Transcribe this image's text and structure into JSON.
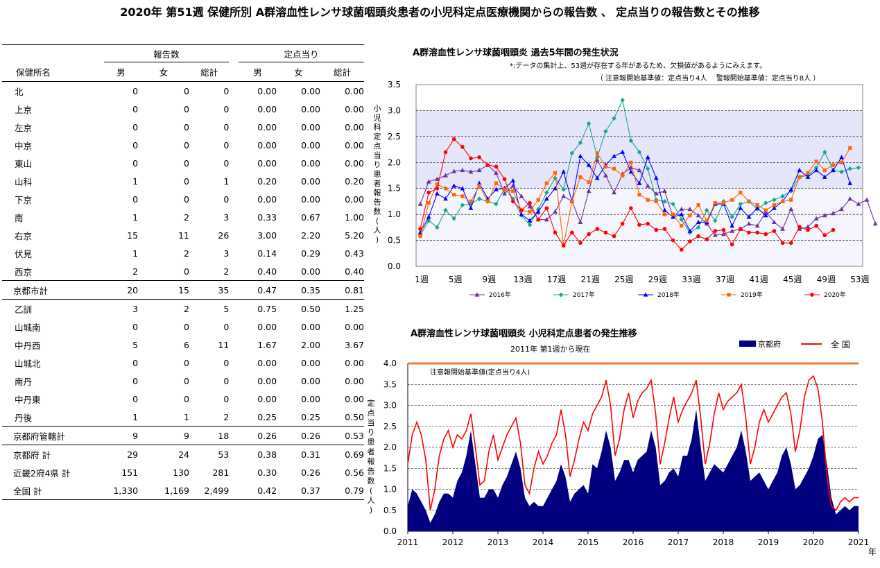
{
  "page_title": "2020年 第51週 保健所別 A群溶血性レンサ球菌咽頭炎患者の小児科定点医療機関からの報告数 、 定点当りの報告数とその推移",
  "table": {
    "group_reports": "報告数",
    "group_per_sentinel": "定点当り",
    "col_name": "保健所名",
    "col_male": "男",
    "col_female": "女",
    "col_total": "総計",
    "col_male2": "男",
    "col_female2": "女",
    "col_total2": "総計",
    "rows": [
      {
        "name": "北",
        "m": "0",
        "f": "0",
        "t": "0",
        "pm": "0.00",
        "pf": "0.00",
        "pt": "0.00",
        "kind": "item"
      },
      {
        "name": "上京",
        "m": "0",
        "f": "0",
        "t": "0",
        "pm": "0.00",
        "pf": "0.00",
        "pt": "0.00",
        "kind": "item"
      },
      {
        "name": "左京",
        "m": "0",
        "f": "0",
        "t": "0",
        "pm": "0.00",
        "pf": "0.00",
        "pt": "0.00",
        "kind": "item"
      },
      {
        "name": "中京",
        "m": "0",
        "f": "0",
        "t": "0",
        "pm": "0.00",
        "pf": "0.00",
        "pt": "0.00",
        "kind": "item"
      },
      {
        "name": "東山",
        "m": "0",
        "f": "0",
        "t": "0",
        "pm": "0.00",
        "pf": "0.00",
        "pt": "0.00",
        "kind": "item"
      },
      {
        "name": "山科",
        "m": "1",
        "f": "0",
        "t": "1",
        "pm": "0.20",
        "pf": "0.00",
        "pt": "0.20",
        "kind": "item"
      },
      {
        "name": "下京",
        "m": "0",
        "f": "0",
        "t": "0",
        "pm": "0.00",
        "pf": "0.00",
        "pt": "0.00",
        "kind": "item"
      },
      {
        "name": "南",
        "m": "1",
        "f": "2",
        "t": "3",
        "pm": "0.33",
        "pf": "0.67",
        "pt": "1.00",
        "kind": "item"
      },
      {
        "name": "右京",
        "m": "15",
        "f": "11",
        "t": "26",
        "pm": "3.00",
        "pf": "2.20",
        "pt": "5.20",
        "kind": "item"
      },
      {
        "name": "伏見",
        "m": "1",
        "f": "2",
        "t": "3",
        "pm": "0.14",
        "pf": "0.29",
        "pt": "0.43",
        "kind": "item"
      },
      {
        "name": "西京",
        "m": "2",
        "f": "0",
        "t": "2",
        "pm": "0.40",
        "pf": "0.00",
        "pt": "0.40",
        "kind": "item"
      },
      {
        "name": "京都市計",
        "m": "20",
        "f": "15",
        "t": "35",
        "pm": "0.47",
        "pf": "0.35",
        "pt": "0.81",
        "kind": "subtotal"
      },
      {
        "name": "乙訓",
        "m": "3",
        "f": "2",
        "t": "5",
        "pm": "0.75",
        "pf": "0.50",
        "pt": "1.25",
        "kind": "item"
      },
      {
        "name": "山城南",
        "m": "0",
        "f": "0",
        "t": "0",
        "pm": "0.00",
        "pf": "0.00",
        "pt": "0.00",
        "kind": "item"
      },
      {
        "name": "中丹西",
        "m": "5",
        "f": "6",
        "t": "11",
        "pm": "1.67",
        "pf": "2.00",
        "pt": "3.67",
        "kind": "item"
      },
      {
        "name": "山城北",
        "m": "0",
        "f": "0",
        "t": "0",
        "pm": "0.00",
        "pf": "0.00",
        "pt": "0.00",
        "kind": "item"
      },
      {
        "name": "南丹",
        "m": "0",
        "f": "0",
        "t": "0",
        "pm": "0.00",
        "pf": "0.00",
        "pt": "0.00",
        "kind": "item"
      },
      {
        "name": "中丹東",
        "m": "0",
        "f": "0",
        "t": "0",
        "pm": "0.00",
        "pf": "0.00",
        "pt": "0.00",
        "kind": "item"
      },
      {
        "name": "丹後",
        "m": "1",
        "f": "1",
        "t": "2",
        "pm": "0.25",
        "pf": "0.25",
        "pt": "0.50",
        "kind": "item"
      },
      {
        "name": "京都府管轄計",
        "m": "9",
        "f": "9",
        "t": "18",
        "pm": "0.26",
        "pf": "0.26",
        "pt": "0.53",
        "kind": "subtotal"
      },
      {
        "name": "京都府 計",
        "m": "29",
        "f": "24",
        "t": "53",
        "pm": "0.38",
        "pf": "0.31",
        "pt": "0.69",
        "kind": "total"
      },
      {
        "name": "近畿2府4県 計",
        "m": "151",
        "f": "130",
        "t": "281",
        "pm": "0.30",
        "pf": "0.26",
        "pt": "0.56",
        "kind": "total"
      },
      {
        "name": "全国 計",
        "m": "1,330",
        "f": "1,169",
        "t": "2,499",
        "pm": "0.42",
        "pf": "0.37",
        "pt": "0.79",
        "kind": "total"
      }
    ]
  },
  "chart1": {
    "title": "A群溶血性レンサ球菌咽頭炎 過去5年間の発生状況",
    "note1": "*:データの集計上、53週が存在する年があるため、欠損値があるようにみえます。",
    "note2": "（ 注意報開始基準値：定点当り4人　 警報開始基準値：定点当り8人 ）",
    "ylabel": "小児科定点当り患者報告数(人)",
    "legend": [
      "2016年",
      "2017年",
      "2018年",
      "2019年",
      "2020年"
    ]
  },
  "chart2": {
    "title": "A群溶血性レンサ球菌咽頭炎 小児科定点患者の発生推移",
    "subtitle": "2011年 第1週から現在",
    "legend_kyoto": "京都府",
    "legend_national": "全 国",
    "threshold_label": "注意報開始基準値(定点当り4人)",
    "ylabel": "定点当り患者報告数(人)",
    "xunit": "年"
  },
  "chart_data": [
    {
      "type": "line",
      "title": "A群溶血性レンサ球菌咽頭炎 過去5年間の発生状況",
      "ylabel": "小児科定点当り患者報告数(人)",
      "ylim": [
        0,
        3.5
      ],
      "y_ticks": [
        "0.0",
        "0.5",
        "1.0",
        "1.5",
        "2.0",
        "2.5",
        "3.0",
        "3.5"
      ],
      "x_ticks": [
        "1週",
        "5週",
        "9週",
        "13週",
        "17週",
        "21週",
        "25週",
        "29週",
        "33週",
        "37週",
        "41週",
        "45週",
        "49週",
        "53週"
      ],
      "legend_position": "bottom",
      "alert_levels": {
        "caution": 4,
        "warning": 8
      },
      "series": [
        {
          "name": "2016年",
          "color": "#7030a0",
          "marker": "triangle",
          "values": [
            1.2,
            1.63,
            1.68,
            1.75,
            1.83,
            1.85,
            1.82,
            1.85,
            1.95,
            1.8,
            1.4,
            1.55,
            1.35,
            1.15,
            0.9,
            0.9,
            1.05,
            1.35,
            1.25,
            0.85,
            1.45,
            2.05,
            1.75,
            1.42,
            1.78,
            1.9,
            1.85,
            1.55,
            1.4,
            1.45,
            0.95,
            1.1,
            1.1,
            0.98,
            0.82,
            0.6,
            0.62,
            0.68,
            0.72,
            0.82,
            0.78,
            1.05,
            0.85,
            0.72,
            1.1,
            0.72,
            0.76,
            0.92,
            0.98,
            1.02,
            1.1,
            1.3,
            1.2,
            1.28,
            0.82
          ]
        },
        {
          "name": "2017年",
          "color": "#17a589",
          "marker": "diamond",
          "values": [
            0.6,
            0.88,
            0.75,
            1.08,
            0.92,
            1.18,
            1.2,
            1.3,
            1.25,
            1.2,
            1.5,
            1.3,
            0.98,
            0.8,
            1.1,
            1.42,
            1.7,
            1.48,
            2.18,
            2.38,
            2.75,
            2.1,
            2.6,
            2.85,
            3.2,
            2.42,
            2.2,
            1.88,
            1.28,
            1.25,
            1.2,
            0.9,
            0.65,
            0.75,
            1.08,
            0.88,
            1.25,
            0.95,
            1.2,
            1.25,
            1.1,
            1.22,
            1.28,
            1.35,
            1.45,
            1.72,
            1.75,
            1.9,
            2.2,
            1.85,
            1.82,
            1.88,
            1.9
          ]
        },
        {
          "name": "2018年",
          "color": "#0000ff",
          "marker": "triangle",
          "values": [
            0.65,
            0.95,
            1.4,
            1.3,
            1.55,
            1.5,
            1.12,
            1.6,
            1.3,
            1.48,
            1.5,
            1.65,
            1.0,
            0.88,
            1.05,
            1.3,
            1.5,
            1.82,
            1.25,
            2.12,
            1.95,
            1.7,
            1.95,
            2.12,
            2.2,
            1.82,
            1.6,
            2.1,
            1.7,
            1.08,
            0.95,
            1.0,
            0.68,
            0.85,
            0.85,
            1.2,
            1.2,
            0.78,
            1.12,
            0.95,
            1.12,
            0.98,
            1.12,
            1.25,
            1.48,
            1.85,
            1.72,
            1.85,
            1.72,
            1.85,
            2.1,
            1.6
          ]
        },
        {
          "name": "2019年",
          "color": "#ff6600",
          "marker": "square",
          "values": [
            0.58,
            1.22,
            1.58,
            1.5,
            1.38,
            1.35,
            1.25,
            1.55,
            1.25,
            1.6,
            1.48,
            1.45,
            1.08,
            1.05,
            1.28,
            1.6,
            1.8,
            0.4,
            1.25,
            1.72,
            1.62,
            2.18,
            1.92,
            1.88,
            1.75,
            2.0,
            1.38,
            1.28,
            1.25,
            1.0,
            1.0,
            0.78,
            0.98,
            1.18,
            0.88,
            1.22,
            1.22,
            1.28,
            1.42,
            1.25,
            1.18,
            1.08,
            1.18,
            1.25,
            1.28,
            1.72,
            1.8,
            2.02,
            1.85,
            1.95,
            2.0,
            2.28
          ]
        },
        {
          "name": "2020年",
          "color": "#ff0000",
          "marker": "circle",
          "values": [
            0.72,
            1.42,
            1.5,
            2.2,
            2.45,
            2.3,
            2.08,
            2.1,
            1.95,
            1.92,
            1.68,
            1.25,
            1.08,
            1.22,
            0.9,
            1.12,
            0.65,
            0.4,
            0.65,
            0.45,
            0.62,
            0.72,
            0.65,
            0.58,
            0.82,
            1.12,
            0.8,
            0.82,
            0.7,
            0.72,
            0.5,
            0.32,
            0.48,
            0.58,
            0.52,
            0.68,
            0.7,
            0.42,
            0.72,
            0.65,
            0.65,
            0.62,
            0.68,
            0.45,
            0.45,
            0.76,
            0.7,
            0.78,
            0.6,
            0.7
          ]
        }
      ]
    },
    {
      "type": "area",
      "title": "A群溶血性レンサ球菌咽頭炎 小児科定点患者の発生推移",
      "subtitle": "2011年 第1週から現在",
      "ylabel": "定点当り患者報告数(人)",
      "xlabel": "年",
      "ylim": [
        0,
        4.0
      ],
      "y_ticks": [
        "0.0",
        "0.5",
        "1.0",
        "1.5",
        "2.0",
        "2.5",
        "3.0",
        "3.5",
        "4.0"
      ],
      "x_ticks": [
        "2011",
        "2012",
        "2013",
        "2014",
        "2015",
        "2016",
        "2017",
        "2018",
        "2019",
        "2020",
        "2021"
      ],
      "threshold": 4.0,
      "legend_position": "top-right",
      "series": [
        {
          "name": "京都府",
          "color": "#000080",
          "style": "area",
          "x": [
            2011.0,
            2011.1,
            2011.2,
            2011.3,
            2011.4,
            2011.5,
            2011.6,
            2011.7,
            2011.8,
            2011.9,
            2012.0,
            2012.1,
            2012.2,
            2012.3,
            2012.4,
            2012.5,
            2012.6,
            2012.7,
            2012.8,
            2012.9,
            2013.0,
            2013.1,
            2013.2,
            2013.3,
            2013.4,
            2013.5,
            2013.6,
            2013.7,
            2013.8,
            2013.9,
            2014.0,
            2014.1,
            2014.2,
            2014.3,
            2014.4,
            2014.5,
            2014.6,
            2014.7,
            2014.8,
            2014.9,
            2015.0,
            2015.1,
            2015.2,
            2015.3,
            2015.4,
            2015.5,
            2015.6,
            2015.7,
            2015.8,
            2015.9,
            2016.0,
            2016.1,
            2016.2,
            2016.3,
            2016.4,
            2016.5,
            2016.6,
            2016.7,
            2016.8,
            2016.9,
            2017.0,
            2017.1,
            2017.2,
            2017.3,
            2017.4,
            2017.5,
            2017.6,
            2017.7,
            2017.8,
            2017.9,
            2018.0,
            2018.1,
            2018.2,
            2018.3,
            2018.4,
            2018.5,
            2018.6,
            2018.7,
            2018.8,
            2018.9,
            2019.0,
            2019.1,
            2019.2,
            2019.3,
            2019.4,
            2019.5,
            2019.6,
            2019.7,
            2019.8,
            2019.9,
            2020.0,
            2020.1,
            2020.2,
            2020.3,
            2020.4,
            2020.5,
            2020.6,
            2020.7,
            2020.8,
            2020.9,
            2021.0
          ],
          "values": [
            0.6,
            1.0,
            0.9,
            0.7,
            0.5,
            0.2,
            0.4,
            0.7,
            0.9,
            0.9,
            0.8,
            1.2,
            1.4,
            1.8,
            2.4,
            1.6,
            0.8,
            0.8,
            1.0,
            1.0,
            0.8,
            1.1,
            1.3,
            1.6,
            1.9,
            1.5,
            0.8,
            0.6,
            0.7,
            0.6,
            0.6,
            0.8,
            1.0,
            1.2,
            1.6,
            1.3,
            0.7,
            0.9,
            1.0,
            1.1,
            0.9,
            1.6,
            1.5,
            1.9,
            2.4,
            2.0,
            1.2,
            1.4,
            1.7,
            1.7,
            1.4,
            1.7,
            1.8,
            1.9,
            2.4,
            2.0,
            1.1,
            1.2,
            1.4,
            1.5,
            1.3,
            1.8,
            1.8,
            2.2,
            2.9,
            2.0,
            1.2,
            1.4,
            1.6,
            1.5,
            1.4,
            1.6,
            1.8,
            2.0,
            2.4,
            1.9,
            1.2,
            1.3,
            1.4,
            1.2,
            1.0,
            1.2,
            1.4,
            1.8,
            2.0,
            1.6,
            1.0,
            1.1,
            1.3,
            1.5,
            1.8,
            2.2,
            2.3,
            1.6,
            0.8,
            0.4,
            0.5,
            0.6,
            0.5,
            0.6,
            0.6
          ]
        },
        {
          "name": "全 国",
          "color": "#ff0000",
          "style": "line",
          "x": [
            2011.0,
            2011.1,
            2011.2,
            2011.3,
            2011.4,
            2011.5,
            2011.6,
            2011.7,
            2011.8,
            2011.9,
            2012.0,
            2012.1,
            2012.2,
            2012.3,
            2012.4,
            2012.5,
            2012.6,
            2012.7,
            2012.8,
            2012.9,
            2013.0,
            2013.1,
            2013.2,
            2013.3,
            2013.4,
            2013.5,
            2013.6,
            2013.7,
            2013.8,
            2013.9,
            2014.0,
            2014.1,
            2014.2,
            2014.3,
            2014.4,
            2014.5,
            2014.6,
            2014.7,
            2014.8,
            2014.9,
            2015.0,
            2015.1,
            2015.2,
            2015.3,
            2015.4,
            2015.5,
            2015.6,
            2015.7,
            2015.8,
            2015.9,
            2016.0,
            2016.1,
            2016.2,
            2016.3,
            2016.4,
            2016.5,
            2016.6,
            2016.7,
            2016.8,
            2016.9,
            2017.0,
            2017.1,
            2017.2,
            2017.3,
            2017.4,
            2017.5,
            2017.6,
            2017.7,
            2017.8,
            2017.9,
            2018.0,
            2018.1,
            2018.2,
            2018.3,
            2018.4,
            2018.5,
            2018.6,
            2018.7,
            2018.8,
            2018.9,
            2019.0,
            2019.1,
            2019.2,
            2019.3,
            2019.4,
            2019.5,
            2019.6,
            2019.7,
            2019.8,
            2019.9,
            2020.0,
            2020.1,
            2020.2,
            2020.3,
            2020.4,
            2020.5,
            2020.6,
            2020.7,
            2020.8,
            2020.9,
            2021.0
          ],
          "values": [
            1.6,
            2.3,
            2.6,
            2.3,
            1.7,
            0.5,
            1.0,
            1.8,
            2.2,
            2.4,
            2.0,
            2.3,
            2.2,
            2.4,
            2.8,
            2.0,
            1.1,
            1.2,
            1.9,
            2.3,
            1.7,
            2.0,
            2.3,
            2.5,
            2.7,
            2.1,
            1.1,
            0.9,
            1.5,
            1.9,
            1.6,
            1.8,
            2.1,
            2.3,
            2.9,
            2.3,
            1.3,
            1.7,
            2.2,
            2.6,
            2.4,
            2.8,
            3.0,
            3.2,
            3.6,
            3.0,
            1.8,
            2.2,
            2.9,
            3.3,
            2.7,
            3.1,
            3.3,
            3.4,
            3.6,
            2.8,
            1.6,
            2.1,
            2.7,
            3.2,
            2.6,
            2.9,
            3.1,
            3.3,
            3.6,
            2.7,
            1.6,
            2.1,
            2.8,
            3.3,
            2.9,
            3.1,
            3.2,
            3.3,
            3.5,
            2.7,
            1.6,
            2.0,
            2.6,
            2.9,
            2.6,
            2.8,
            3.0,
            3.2,
            3.3,
            2.8,
            1.9,
            2.4,
            3.2,
            3.6,
            3.7,
            3.4,
            2.6,
            1.3,
            0.6,
            0.5,
            0.7,
            0.8,
            0.7,
            0.8,
            0.8
          ]
        }
      ]
    }
  ]
}
